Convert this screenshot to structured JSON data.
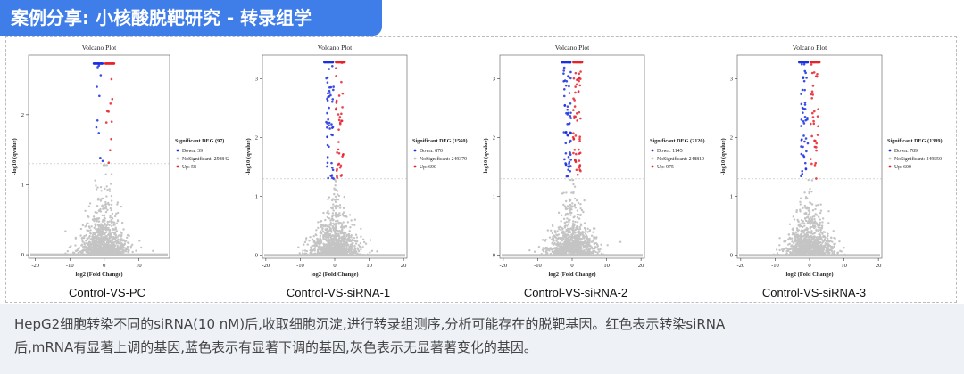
{
  "header": {
    "title": "案例分享: 小核酸脱靶研究 - 转录组学"
  },
  "colors": {
    "banner": "#3f7de8",
    "up": "#e8212b",
    "down": "#1c2fe0",
    "ns": "#c4c4c4"
  },
  "chart_data": [
    {
      "type": "scatter",
      "title": "Volcano Plot",
      "caption": "Control-VS-PC",
      "xlabel": "log2 (Fold Change)",
      "ylabel": "-log10 (qvalue)",
      "xlim": [
        -22,
        19
      ],
      "ylim": [
        -0.05,
        2.85
      ],
      "xticks": [
        "-20",
        "-10",
        "0",
        "10"
      ],
      "xtick_values": [
        -20,
        -10,
        0,
        10
      ],
      "yticks": [
        "0",
        "1",
        "2"
      ],
      "ytick_values": [
        0,
        1,
        2
      ],
      "threshold": 1.3,
      "legend_title": "Significant DEG (97)",
      "legend_down": "Down: 39",
      "legend_ns": "NoSignificant: 250842",
      "legend_up": "Up: 58",
      "counts": {
        "down": 39,
        "ns": 250842,
        "up": 58
      }
    },
    {
      "type": "scatter",
      "title": "Volcano Plot",
      "caption": "Control-VS-siRNA-1",
      "xlabel": "log2 (Fold Change)",
      "ylabel": "-log10 (qvalue)",
      "xlim": [
        -21,
        21
      ],
      "ylim": [
        -0.05,
        3.4
      ],
      "xticks": [
        "-20",
        "-10",
        "0",
        "10",
        "20"
      ],
      "xtick_values": [
        -20,
        -10,
        0,
        10,
        20
      ],
      "yticks": [
        "0",
        "1",
        "2",
        "3"
      ],
      "ytick_values": [
        0,
        1,
        2,
        3
      ],
      "threshold": 1.3,
      "legend_title": "Significant DEG (1560)",
      "legend_down": "Down: 870",
      "legend_ns": "NoSignificant: 249379",
      "legend_up": "Up: 690",
      "counts": {
        "down": 870,
        "ns": 249379,
        "up": 690
      }
    },
    {
      "type": "scatter",
      "title": "Volcano Plot",
      "caption": "Control-VS-siRNA-2",
      "xlabel": "log2 (Fold Change)",
      "ylabel": "-log10 (qvalue)",
      "xlim": [
        -21,
        21
      ],
      "ylim": [
        -0.05,
        3.4
      ],
      "xticks": [
        "-20",
        "-10",
        "0",
        "10",
        "20"
      ],
      "xtick_values": [
        -20,
        -10,
        0,
        10,
        20
      ],
      "yticks": [
        "0",
        "1",
        "2",
        "3"
      ],
      "ytick_values": [
        0,
        1,
        2,
        3
      ],
      "threshold": 1.3,
      "legend_title": "Significant DEG (2120)",
      "legend_down": "Down: 1145",
      "legend_ns": "NoSignificant: 248819",
      "legend_up": "Up: 975",
      "counts": {
        "down": 1145,
        "ns": 248819,
        "up": 975
      }
    },
    {
      "type": "scatter",
      "title": "Volcano Plot",
      "caption": "Control-VS-siRNA-3",
      "xlabel": "log2 (Fold Change)",
      "ylabel": "-log10 (qvalue)",
      "xlim": [
        -21,
        21
      ],
      "ylim": [
        -0.05,
        3.4
      ],
      "xticks": [
        "-20",
        "-10",
        "0",
        "10",
        "20"
      ],
      "xtick_values": [
        -20,
        -10,
        0,
        10,
        20
      ],
      "yticks": [
        "0",
        "1",
        "2",
        "3"
      ],
      "ytick_values": [
        0,
        1,
        2,
        3
      ],
      "threshold": 1.3,
      "legend_title": "Significant DEG (1389)",
      "legend_down": "Down: 789",
      "legend_ns": "NoSignificant: 249550",
      "legend_up": "Up: 600",
      "counts": {
        "down": 789,
        "ns": 249550,
        "up": 600
      }
    }
  ],
  "description": {
    "line1": "HepG2细胞转染不同的siRNA(10 nM)后,收取细胞沉淀,进行转录组测序,分析可能存在的脱靶基因。红色表示转染siRNA",
    "line2": "后,mRNA有显著上调的基因,蓝色表示有显著下调的基因,灰色表示无显著著变化的基因。"
  }
}
